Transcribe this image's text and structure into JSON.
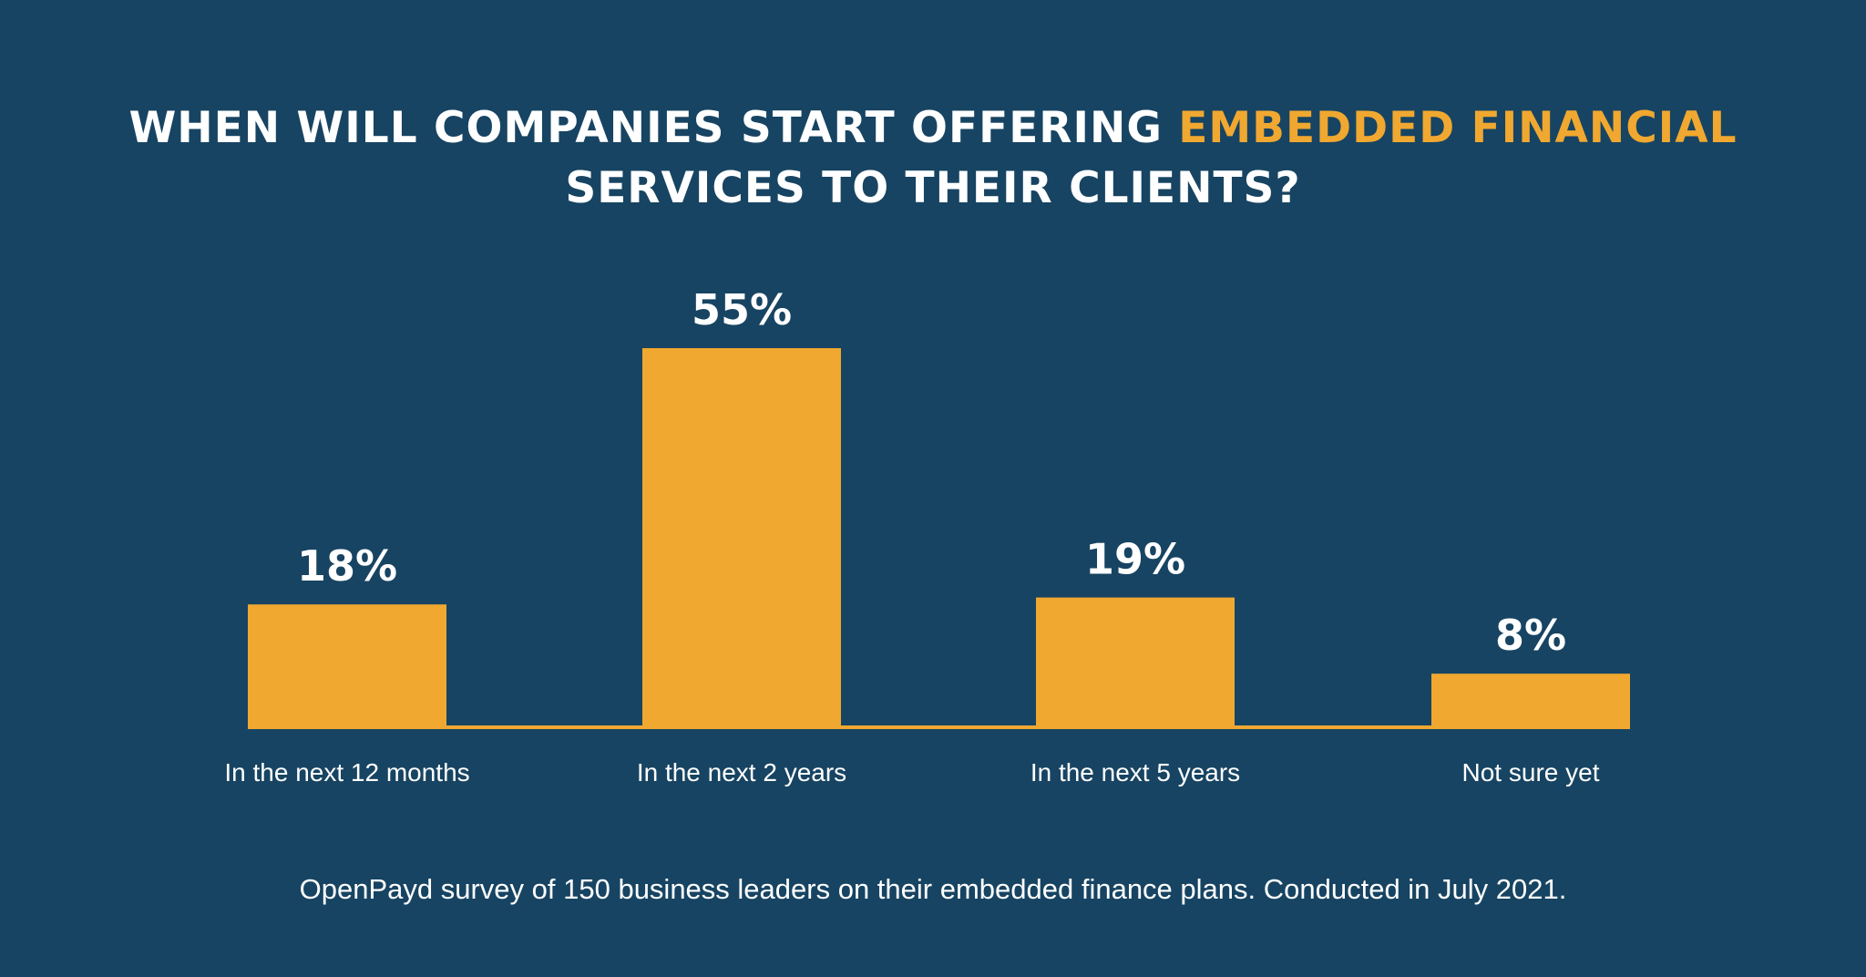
{
  "colors": {
    "background": "#174462",
    "bar": "#f0a830",
    "accent_text": "#f0a830",
    "text": "#ffffff"
  },
  "title": {
    "part1": "WHEN WILL COMPANIES START OFFERING ",
    "highlight": "EMBEDDED FINANCIAL",
    "line2": "SERVICES TO THEIR CLIENTS?"
  },
  "footnote": "OpenPayd survey of 150 business leaders on their embedded finance plans. Conducted in July 2021.",
  "chart_data": {
    "type": "bar",
    "title": "WHEN WILL COMPANIES START OFFERING EMBEDDED FINANCIAL SERVICES TO THEIR CLIENTS?",
    "categories": [
      "In the next 12 months",
      "In the next 2 years",
      "In the next 5 years",
      "Not sure yet"
    ],
    "values": [
      18,
      55,
      19,
      8
    ],
    "value_labels": [
      "18%",
      "55%",
      "19%",
      "8%"
    ],
    "unit": "%",
    "ylim": [
      0,
      55
    ],
    "grid": false,
    "legend": "none",
    "xlabel": "",
    "ylabel": ""
  }
}
